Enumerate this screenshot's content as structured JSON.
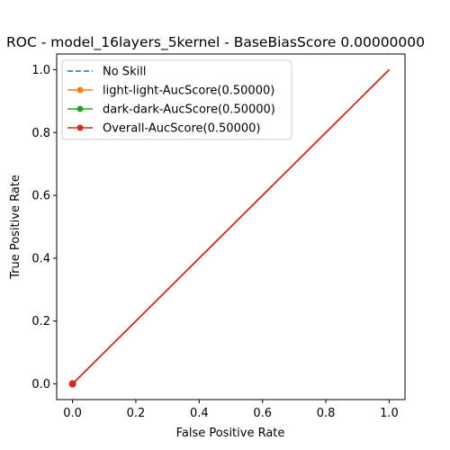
{
  "chart_data": {
    "type": "line",
    "title": "ROC - model_16layers_5kernel - BaseBiasScore 0.00000000",
    "xlabel": "False Positive Rate",
    "ylabel": "True Positive Rate",
    "xlim": [
      -0.05,
      1.05
    ],
    "ylim": [
      -0.05,
      1.05
    ],
    "xticks": [
      "0.0",
      "0.2",
      "0.4",
      "0.6",
      "0.8",
      "1.0"
    ],
    "yticks": [
      "0.0",
      "0.2",
      "0.4",
      "0.6",
      "0.8",
      "1.0"
    ],
    "xtick_values": [
      0,
      0.2,
      0.4,
      0.6,
      0.8,
      1.0
    ],
    "ytick_values": [
      0,
      0.2,
      0.4,
      0.6,
      0.8,
      1.0
    ],
    "grid": false,
    "legend_position": "top-left",
    "series": [
      {
        "name": "No Skill",
        "x": [
          0,
          1
        ],
        "y": [
          0,
          1
        ],
        "color": "#1f77b4",
        "style": "dashed",
        "marker": "none"
      },
      {
        "name": "light-light-AucScore(0.50000)",
        "x": [
          0,
          1
        ],
        "y": [
          0,
          1
        ],
        "color": "#ff7f0e",
        "style": "solid",
        "marker": "circle"
      },
      {
        "name": "dark-dark-AucScore(0.50000)",
        "x": [
          0,
          1
        ],
        "y": [
          0,
          1
        ],
        "color": "#2ca02c",
        "style": "solid",
        "marker": "circle"
      },
      {
        "name": "Overall-AucScore(0.50000)",
        "x": [
          0,
          1
        ],
        "y": [
          0,
          1
        ],
        "color": "#d62728",
        "style": "solid",
        "marker": "circle"
      }
    ]
  }
}
